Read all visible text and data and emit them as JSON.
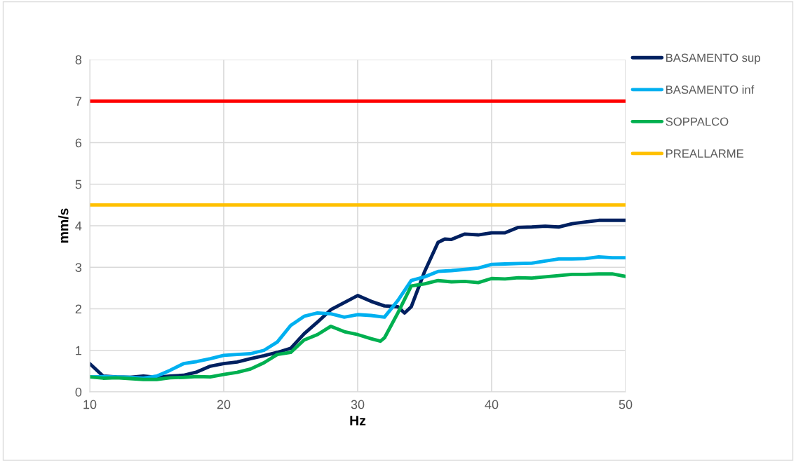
{
  "chart_data": {
    "type": "line",
    "xlabel": "Hz",
    "ylabel": "mm/s",
    "xlim": [
      10,
      50
    ],
    "xticks": [
      10,
      20,
      30,
      40,
      50
    ],
    "ylim": [
      0,
      8
    ],
    "yticks": [
      0,
      1,
      2,
      3,
      4,
      5,
      6,
      7,
      8
    ],
    "grid": true,
    "legend": "right",
    "marker": "none",
    "line_style": "solid",
    "series": [
      {
        "name": "BASAMENTO sup",
        "color": "#002060",
        "x": [
          10,
          11,
          12,
          13,
          14,
          15,
          16,
          17,
          18,
          19,
          20,
          21,
          22,
          23,
          24,
          25,
          26,
          27,
          28,
          29,
          30,
          31,
          32,
          33,
          33.5,
          34,
          35,
          36,
          36.5,
          37,
          38,
          39,
          40,
          41,
          42,
          43,
          44,
          45,
          46,
          47,
          48,
          49,
          50
        ],
        "values": [
          0.68,
          0.38,
          0.36,
          0.35,
          0.38,
          0.35,
          0.38,
          0.4,
          0.48,
          0.62,
          0.68,
          0.72,
          0.8,
          0.87,
          0.95,
          1.05,
          1.4,
          1.68,
          1.98,
          2.15,
          2.32,
          2.18,
          2.07,
          2.05,
          1.9,
          2.05,
          2.9,
          3.6,
          3.68,
          3.67,
          3.8,
          3.78,
          3.83,
          3.83,
          3.96,
          3.97,
          3.99,
          3.97,
          4.05,
          4.09,
          4.13,
          4.13,
          4.13
        ]
      },
      {
        "name": "BASAMENTO inf",
        "color": "#00b0f0",
        "x": [
          10,
          11,
          12,
          13,
          14,
          15,
          16,
          17,
          18,
          19,
          20,
          21,
          22,
          23,
          24,
          25,
          26,
          27,
          28,
          29,
          30,
          31,
          32,
          33,
          34,
          35,
          36,
          37,
          38,
          39,
          40,
          41,
          42,
          43,
          44,
          45,
          46,
          47,
          48,
          49,
          50
        ],
        "values": [
          0.36,
          0.37,
          0.36,
          0.35,
          0.33,
          0.38,
          0.52,
          0.68,
          0.73,
          0.8,
          0.88,
          0.9,
          0.92,
          1.0,
          1.2,
          1.6,
          1.82,
          1.9,
          1.88,
          1.8,
          1.86,
          1.84,
          1.8,
          2.2,
          2.68,
          2.77,
          2.9,
          2.92,
          2.95,
          2.98,
          3.07,
          3.08,
          3.09,
          3.1,
          3.15,
          3.2,
          3.2,
          3.21,
          3.25,
          3.23,
          3.23
        ]
      },
      {
        "name": "SOPPALCO",
        "color": "#00b050",
        "x": [
          10,
          11,
          12,
          13,
          14,
          15,
          16,
          17,
          18,
          19,
          20,
          21,
          22,
          23,
          24,
          25,
          26,
          27,
          28,
          29,
          30,
          31,
          31.7,
          32,
          33,
          34,
          35,
          36,
          37,
          38,
          39,
          40,
          41,
          42,
          43,
          44,
          45,
          46,
          47,
          48,
          49,
          50
        ],
        "values": [
          0.36,
          0.33,
          0.34,
          0.32,
          0.3,
          0.3,
          0.34,
          0.35,
          0.37,
          0.36,
          0.42,
          0.47,
          0.55,
          0.7,
          0.9,
          0.95,
          1.25,
          1.38,
          1.58,
          1.45,
          1.38,
          1.28,
          1.22,
          1.3,
          1.9,
          2.55,
          2.6,
          2.68,
          2.65,
          2.66,
          2.63,
          2.73,
          2.72,
          2.75,
          2.74,
          2.77,
          2.8,
          2.83,
          2.83,
          2.84,
          2.84,
          2.78
        ]
      },
      {
        "name": "PREALLARME",
        "color": "#ffc000",
        "x": [
          10,
          50
        ],
        "values": [
          4.5,
          4.5
        ]
      },
      {
        "color": "#ff0000",
        "x": [
          10,
          50
        ],
        "values": [
          7,
          7
        ]
      }
    ]
  }
}
